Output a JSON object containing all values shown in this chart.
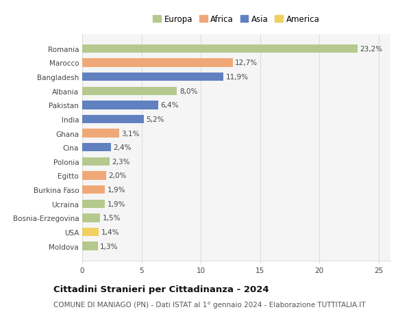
{
  "countries": [
    "Romania",
    "Marocco",
    "Bangladesh",
    "Albania",
    "Pakistan",
    "India",
    "Ghana",
    "Cina",
    "Polonia",
    "Egitto",
    "Burkina Faso",
    "Ucraina",
    "Bosnia-Erzegovina",
    "USA",
    "Moldova"
  ],
  "values": [
    23.2,
    12.7,
    11.9,
    8.0,
    6.4,
    5.2,
    3.1,
    2.4,
    2.3,
    2.0,
    1.9,
    1.9,
    1.5,
    1.4,
    1.3
  ],
  "continents": [
    "Europa",
    "Africa",
    "Asia",
    "Europa",
    "Asia",
    "Asia",
    "Africa",
    "Asia",
    "Europa",
    "Africa",
    "Africa",
    "Europa",
    "Europa",
    "America",
    "Europa"
  ],
  "continent_colors": {
    "Europa": "#b5c98e",
    "Africa": "#f0a878",
    "Asia": "#6080c0",
    "America": "#f0d060"
  },
  "legend_order": [
    "Europa",
    "Africa",
    "Asia",
    "America"
  ],
  "title": "Cittadini Stranieri per Cittadinanza - 2024",
  "subtitle": "COMUNE DI MANIAGO (PN) - Dati ISTAT al 1° gennaio 2024 - Elaborazione TUTTITALIA.IT",
  "xlim": [
    0,
    26
  ],
  "xticks": [
    0,
    5,
    10,
    15,
    20,
    25
  ],
  "background_color": "#ffffff",
  "bar_background": "#f5f5f5",
  "grid_color": "#dddddd",
  "title_fontsize": 9.5,
  "subtitle_fontsize": 7.5,
  "label_fontsize": 7.5,
  "tick_fontsize": 7.5,
  "legend_fontsize": 8.5
}
